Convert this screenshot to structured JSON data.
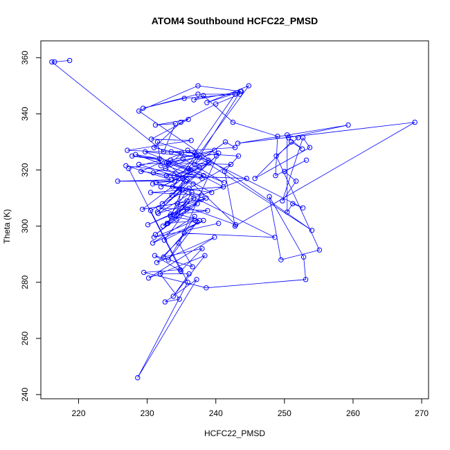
{
  "chart_data": {
    "type": "line",
    "title": "ATOM4 Southbound HCFC22_PMSD",
    "xlabel": "HCFC22_PMSD",
    "ylabel": "Theta (K)",
    "xlim": [
      214.5,
      271.0
    ],
    "ylim": [
      238.5,
      366.0
    ],
    "xticks": [
      220,
      230,
      240,
      250,
      260,
      270
    ],
    "yticks": [
      240,
      260,
      280,
      300,
      320,
      340,
      360
    ],
    "line_color": "#0000ff",
    "marker": "open-circle",
    "grid": false,
    "legend": "none",
    "series": [
      {
        "x": [
          218.7,
          216.5,
          216.1,
          232.4,
          234.1,
          231.2,
          236.0,
          230.6,
          236.4,
          227.1,
          236.9,
          242.8,
          235.4,
          229.4,
          237.4,
          243.5,
          240.0,
          234.9,
          231.0,
          238.9,
          233.9,
          239.0,
          234.6,
          237.6,
          232.0,
          236.2,
          233.6,
          235.6,
          232.2,
          240.1,
          231.5,
          235.1,
          233.0,
          236.8,
          232.3,
          237.9,
          229.3,
          235.2,
          234.2,
          236.5,
          231.6,
          238.6,
          230.1,
          237.3,
          231.2,
          235.8,
          232.5,
          238.2,
          230.8,
          236.9,
          233.1,
          237.3,
          231.4,
          239.8,
          230.2,
          238.4,
          233.8,
          236.1,
          231.9,
          234.7,
          232.6,
          237.2,
          228.6,
          235.9,
          230.5,
          242.2,
          233.2,
          236.3,
          229.7,
          237.6,
          232.8,
          244.5,
          234.4,
          242.9,
          236.7,
          230.9,
          239.8,
          233.4,
          241.2,
          235.2,
          232.0,
          231.5,
          237.1,
          233.7,
          248.6,
          235.4,
          232.4,
          238.0,
          234.9,
          231.1,
          236.6,
          234.6,
          240.4,
          233.1,
          228.8,
          235.8,
          232.8,
          238.2,
          226.9,
          233.5,
          225.7,
          234.0,
          231.3,
          237.9,
          230.5,
          241.1,
          236.0,
          244.8,
          238.7,
          243.7,
          236.8,
          238.2,
          242.5,
          249.0,
          248.7,
          253.2,
          250.0,
          251.7,
          249.7,
          252.7,
          253.7,
          245.7,
          251.0,
          252.6,
          250.6,
          259.3,
          243.2,
          269.0,
          242.8,
          241.3,
          243.3,
          233.5,
          242.8,
          241.4,
          236.9,
          243.6,
          237.4,
          228.8,
          254.0,
          235.9,
          252.7,
          251.2,
          250.4,
          250.4,
          252.0,
          248.8,
          255.1,
          249.5,
          247.8,
          252.8,
          253.1,
          238.6,
          229.5,
          234.8,
          227.3,
          232.0,
          227.8,
          231.8,
          228.3,
          238.0,
          229.1,
          235.0,
          232.7,
          239.4,
          230.8,
          236.1,
          233.4,
          238.8,
          231.7,
          237.6,
          232.9,
          235.8,
          233.4,
          237.0,
          231.0,
          240.4
        ],
        "y": [
          359.0,
          358.5,
          358.5,
          326.5,
          336.5,
          336.0,
          338.0,
          331.0,
          330.5,
          327.0,
          326.0,
          347.0,
          345.5,
          342.0,
          347.0,
          347.0,
          343.5,
          337.0,
          328.0,
          323.5,
          318.0,
          322.5,
          317.0,
          321.0,
          314.0,
          319.0,
          311.0,
          316.0,
          308.0,
          325.0,
          305.0,
          313.0,
          301.0,
          310.0,
          300.0,
          309.5,
          306.0,
          317.0,
          302.5,
          312.0,
          304.5,
          310.0,
          300.5,
          308.0,
          297.0,
          306.0,
          295.0,
          302.0,
          294.0,
          303.5,
          288.0,
          301.5,
          287.0,
          296.0,
          281.5,
          289.5,
          275.0,
          283.0,
          283.0,
          274.0,
          273.0,
          281.0,
          246.0,
          280.0,
          305.5,
          322.0,
          322.5,
          320.0,
          326.5,
          324.5,
          318.0,
          317.0,
          308.0,
          300.5,
          315.0,
          319.0,
          327.0,
          323.5,
          315.5,
          324.0,
          321.5,
          330.0,
          325.5,
          314.0,
          296.0,
          297.5,
          289.0,
          292.0,
          284.0,
          289.5,
          285.5,
          294.0,
          326.0,
          322.5,
          322.0,
          316.5,
          322.5,
          318.0,
          321.5,
          316.5,
          316.0,
          316.0,
          315.5,
          311.0,
          312.0,
          314.0,
          320.5,
          350.0,
          344.0,
          348.0,
          345.0,
          346.5,
          337.0,
          332.0,
          318.0,
          323.5,
          319.5,
          316.0,
          309.0,
          331.5,
          328.0,
          317.0,
          330.0,
          327.5,
          331.5,
          336.0,
          329.5,
          337.0,
          300.0,
          319.5,
          325.0,
          326.5,
          328.0,
          330.0,
          322.0,
          348.0,
          350.0,
          341.0,
          298.5,
          327.0,
          306.5,
          308.0,
          305.0,
          332.5,
          331.5,
          325.0,
          291.5,
          288.0,
          310.5,
          289.0,
          281.0,
          278.0,
          283.5,
          284.5,
          320.5,
          323.5,
          325.0,
          324.0,
          325.5,
          317.0,
          319.5,
          326.0,
          320.5,
          312.0,
          315.0,
          313.5,
          304.0,
          305.5,
          306.5,
          302.0,
          301.0,
          309.0,
          303.5,
          302.0,
          296.0,
          301.0
        ]
      }
    ]
  }
}
